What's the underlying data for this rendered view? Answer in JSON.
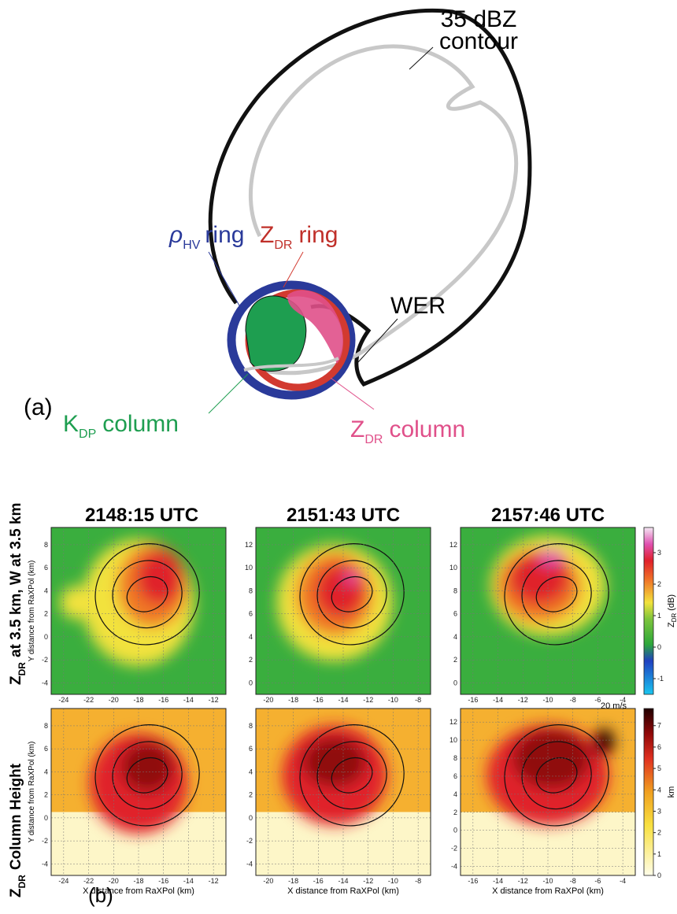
{
  "panel_a": {
    "label": "(a)",
    "contour_label": [
      "35 dBZ",
      "contour"
    ],
    "rhohv_ring": {
      "symbol": "ρ",
      "sub": "HV",
      "text": "ring"
    },
    "zdr_ring": {
      "symbol": "Z",
      "sub": "DR",
      "text": "ring"
    },
    "wer": "WER",
    "kdp_column": {
      "symbol": "K",
      "sub": "DP",
      "text": "column"
    },
    "zdr_column": {
      "symbol": "Z",
      "sub": "DR",
      "text": "column"
    }
  },
  "panel_b": {
    "label": "(b)",
    "columns": [
      "2148:15 UTC",
      "2151:43 UTC",
      "2157:46 UTC"
    ],
    "row_titles": [
      {
        "symbol": "Z",
        "sub": "DR",
        "text": "at 3.5 km, W at 3.5 km"
      },
      {
        "symbol": "Z",
        "sub": "DR",
        "text": "Column Height"
      }
    ],
    "x_axis_label": "X distance from RaXPol (km)",
    "y_axis_label": "Y distance from RaXPol (km)",
    "wind_scale": "20 m/s",
    "colorbars": [
      {
        "symbol": "Z",
        "sub": "DR",
        "unit": "(dB)",
        "lim": [
          -1.5,
          3.8
        ],
        "ticks": [
          -1,
          0,
          1,
          2,
          3
        ]
      },
      {
        "unit": "km",
        "lim": [
          0,
          7.8
        ],
        "ticks": [
          0,
          1,
          2,
          3,
          4,
          5,
          6,
          7
        ]
      }
    ],
    "panels": [
      [
        {
          "xlim": [
            -25,
            -11
          ],
          "ylim": [
            -5,
            9.5
          ],
          "xticks": [
            -24,
            -22,
            -20,
            -18,
            -16,
            -14,
            -12
          ],
          "yticks": [
            -4,
            -2,
            0,
            2,
            4,
            6,
            8
          ]
        },
        {
          "xlim": [
            -21,
            -7
          ],
          "ylim": [
            -1,
            13.5
          ],
          "xticks": [
            -20,
            -18,
            -16,
            -14,
            -12,
            -10,
            -8
          ],
          "yticks": [
            0,
            2,
            4,
            6,
            8,
            10,
            12
          ]
        },
        {
          "xlim": [
            -17,
            -3
          ],
          "ylim": [
            -1,
            13.5
          ],
          "xticks": [
            -16,
            -14,
            -12,
            -10,
            -8,
            -6,
            -4
          ],
          "yticks": [
            0,
            2,
            4,
            6,
            8,
            10,
            12
          ]
        }
      ],
      [
        {
          "xlim": [
            -25,
            -11
          ],
          "ylim": [
            -5,
            9.5
          ],
          "xticks": [
            -24,
            -22,
            -20,
            -18,
            -16,
            -14,
            -12
          ],
          "yticks": [
            -4,
            -2,
            0,
            2,
            4,
            6,
            8
          ]
        },
        {
          "xlim": [
            -21,
            -7
          ],
          "ylim": [
            -5,
            9.5
          ],
          "xticks": [
            -20,
            -18,
            -16,
            -14,
            -12,
            -10,
            -8
          ],
          "yticks": [
            -4,
            -2,
            0,
            2,
            4,
            6,
            8
          ]
        },
        {
          "xlim": [
            -17,
            -3
          ],
          "ylim": [
            -5,
            13.5
          ],
          "xticks": [
            -16,
            -14,
            -12,
            -10,
            -8,
            -6,
            -4
          ],
          "yticks": [
            -4,
            -2,
            0,
            2,
            4,
            6,
            8,
            10,
            12
          ]
        }
      ]
    ]
  }
}
